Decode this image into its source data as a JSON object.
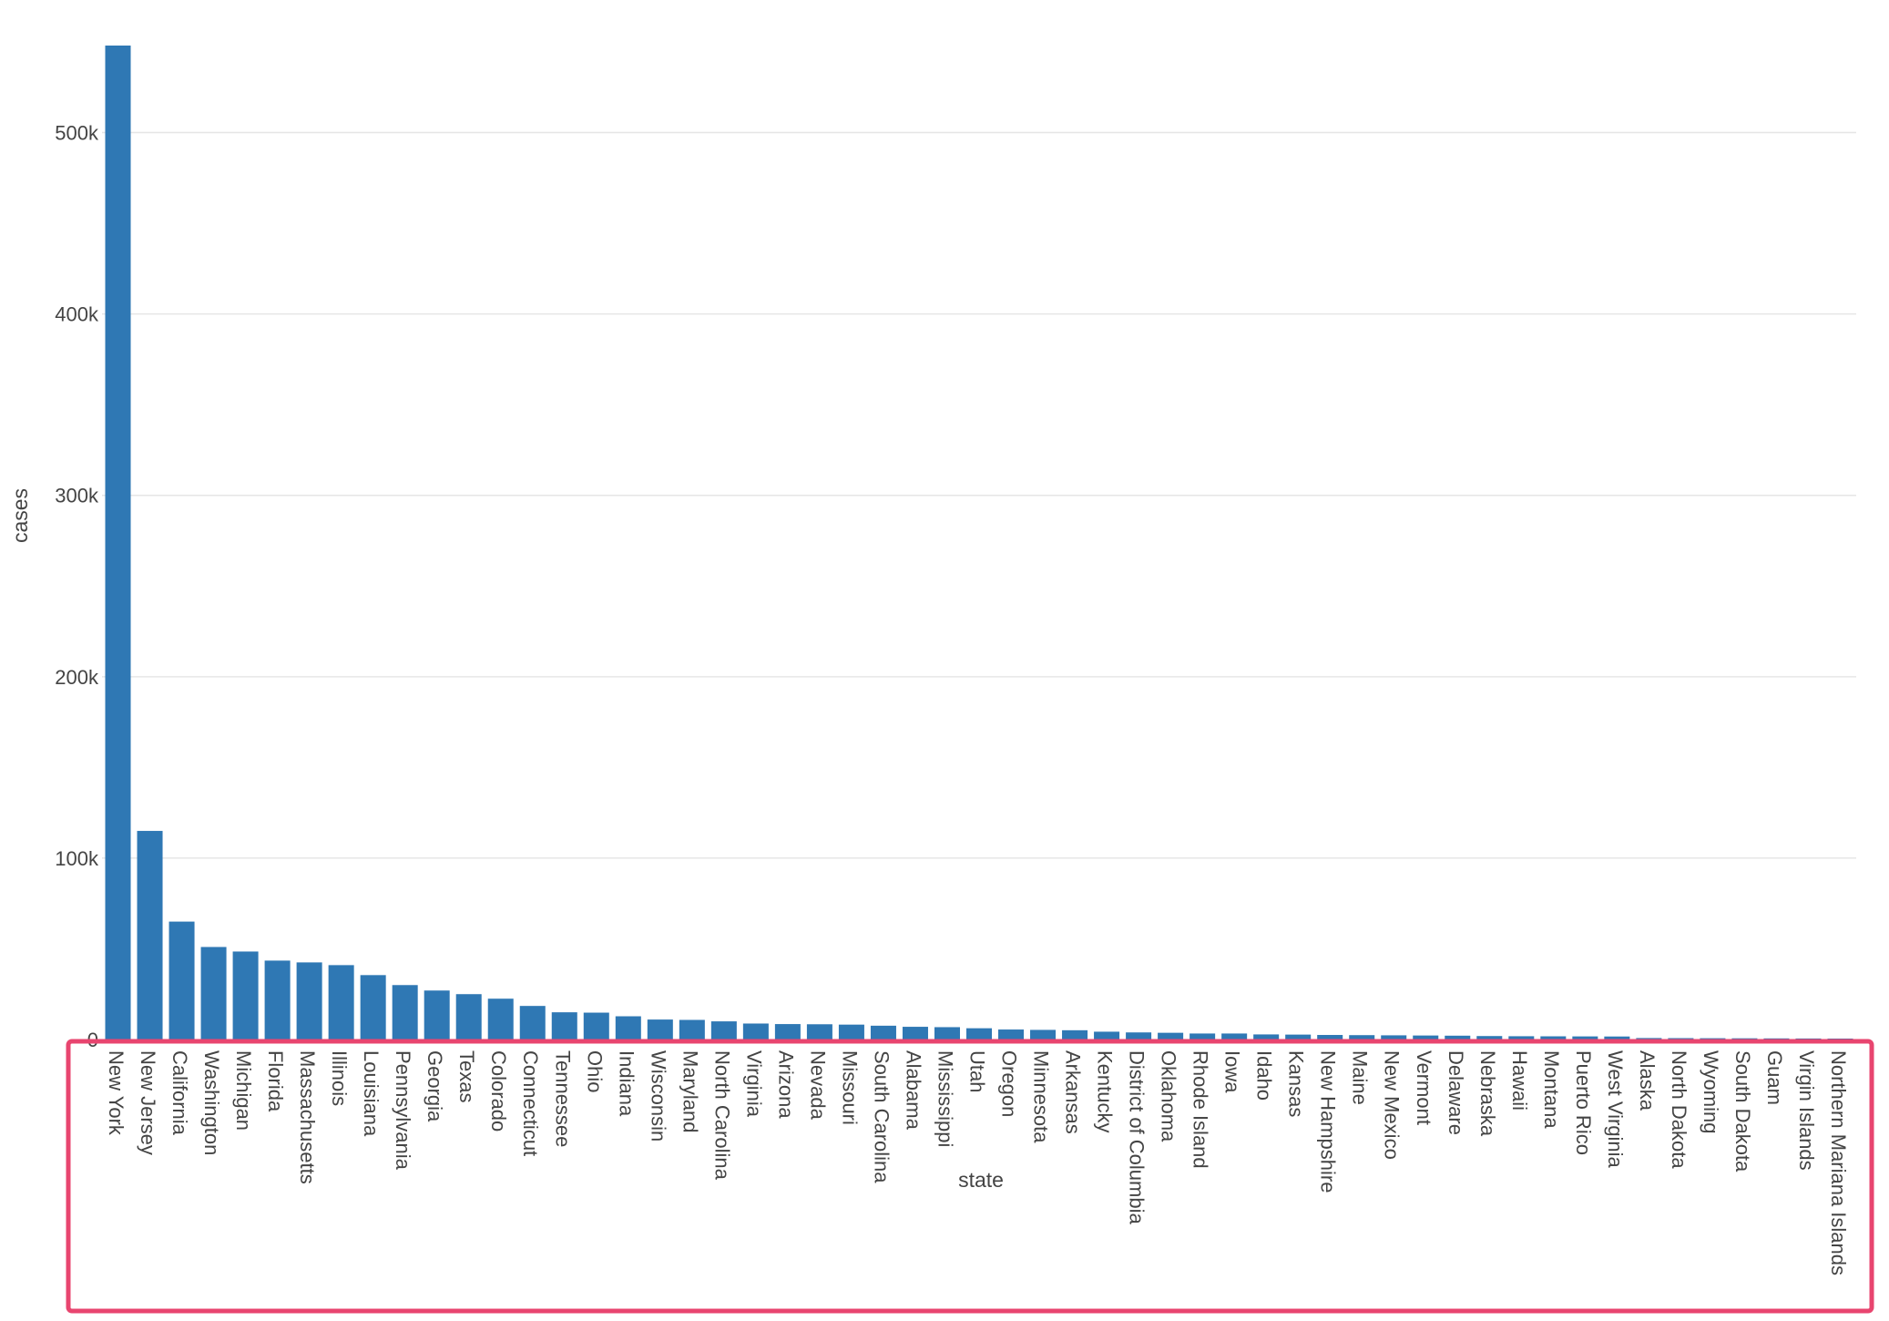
{
  "chart_data": {
    "type": "bar",
    "xlabel": "state",
    "ylabel": "cases",
    "ylim": [
      0,
      548000
    ],
    "y_ticks": [
      0,
      100000,
      200000,
      300000,
      400000,
      500000
    ],
    "y_tick_labels": [
      "0",
      "100k",
      "200k",
      "300k",
      "400k",
      "500k"
    ],
    "grid": true,
    "bar_color": "#2f78b4",
    "gridline_color": "#e6e6e6",
    "highlight_color": "#e8456f",
    "categories": [
      "New York",
      "New Jersey",
      "California",
      "Washington",
      "Michigan",
      "Florida",
      "Massachusetts",
      "Illinois",
      "Louisiana",
      "Pennsylvania",
      "Georgia",
      "Texas",
      "Colorado",
      "Connecticut",
      "Tennessee",
      "Ohio",
      "Indiana",
      "Wisconsin",
      "Maryland",
      "North Carolina",
      "Virginia",
      "Arizona",
      "Nevada",
      "Missouri",
      "South Carolina",
      "Alabama",
      "Mississippi",
      "Utah",
      "Oregon",
      "Minnesota",
      "Arkansas",
      "Kentucky",
      "District of Columbia",
      "Oklahoma",
      "Rhode Island",
      "Iowa",
      "Idaho",
      "Kansas",
      "New Hampshire",
      "Maine",
      "New Mexico",
      "Vermont",
      "Delaware",
      "Nebraska",
      "Hawaii",
      "Montana",
      "Puerto Rico",
      "West Virginia",
      "Alaska",
      "North Dakota",
      "Wyoming",
      "South Dakota",
      "Guam",
      "Virgin Islands",
      "Northern Mariana Islands"
    ],
    "values": [
      548000,
      115000,
      65000,
      51000,
      48500,
      43500,
      42500,
      41000,
      35500,
      30000,
      27000,
      25000,
      22500,
      18500,
      15000,
      14800,
      12800,
      11000,
      10800,
      10000,
      8800,
      8500,
      8400,
      8200,
      7600,
      7000,
      6800,
      6200,
      5500,
      5300,
      5100,
      4300,
      3900,
      3700,
      3300,
      3300,
      2800,
      2700,
      2500,
      2400,
      2300,
      2200,
      2100,
      1900,
      1800,
      1750,
      1700,
      1650,
      800,
      750,
      700,
      650,
      600,
      550,
      500
    ]
  }
}
